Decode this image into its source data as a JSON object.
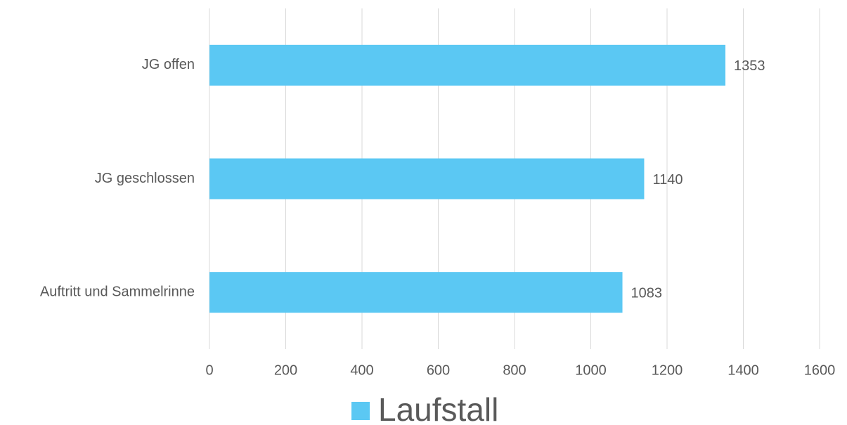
{
  "chart_data": {
    "type": "barh",
    "categories": [
      "JG offen",
      "JG geschlossen",
      "Auftritt und Sammelrinne"
    ],
    "series": [
      {
        "name": "Laufstall",
        "color": "#5bc8f3",
        "values": [
          1353,
          1140,
          1083
        ]
      }
    ],
    "xlim": [
      0,
      1600
    ],
    "xticks": [
      0,
      200,
      400,
      600,
      800,
      1000,
      1200,
      1400,
      1600
    ],
    "grid": true,
    "legend": "bottom"
  }
}
